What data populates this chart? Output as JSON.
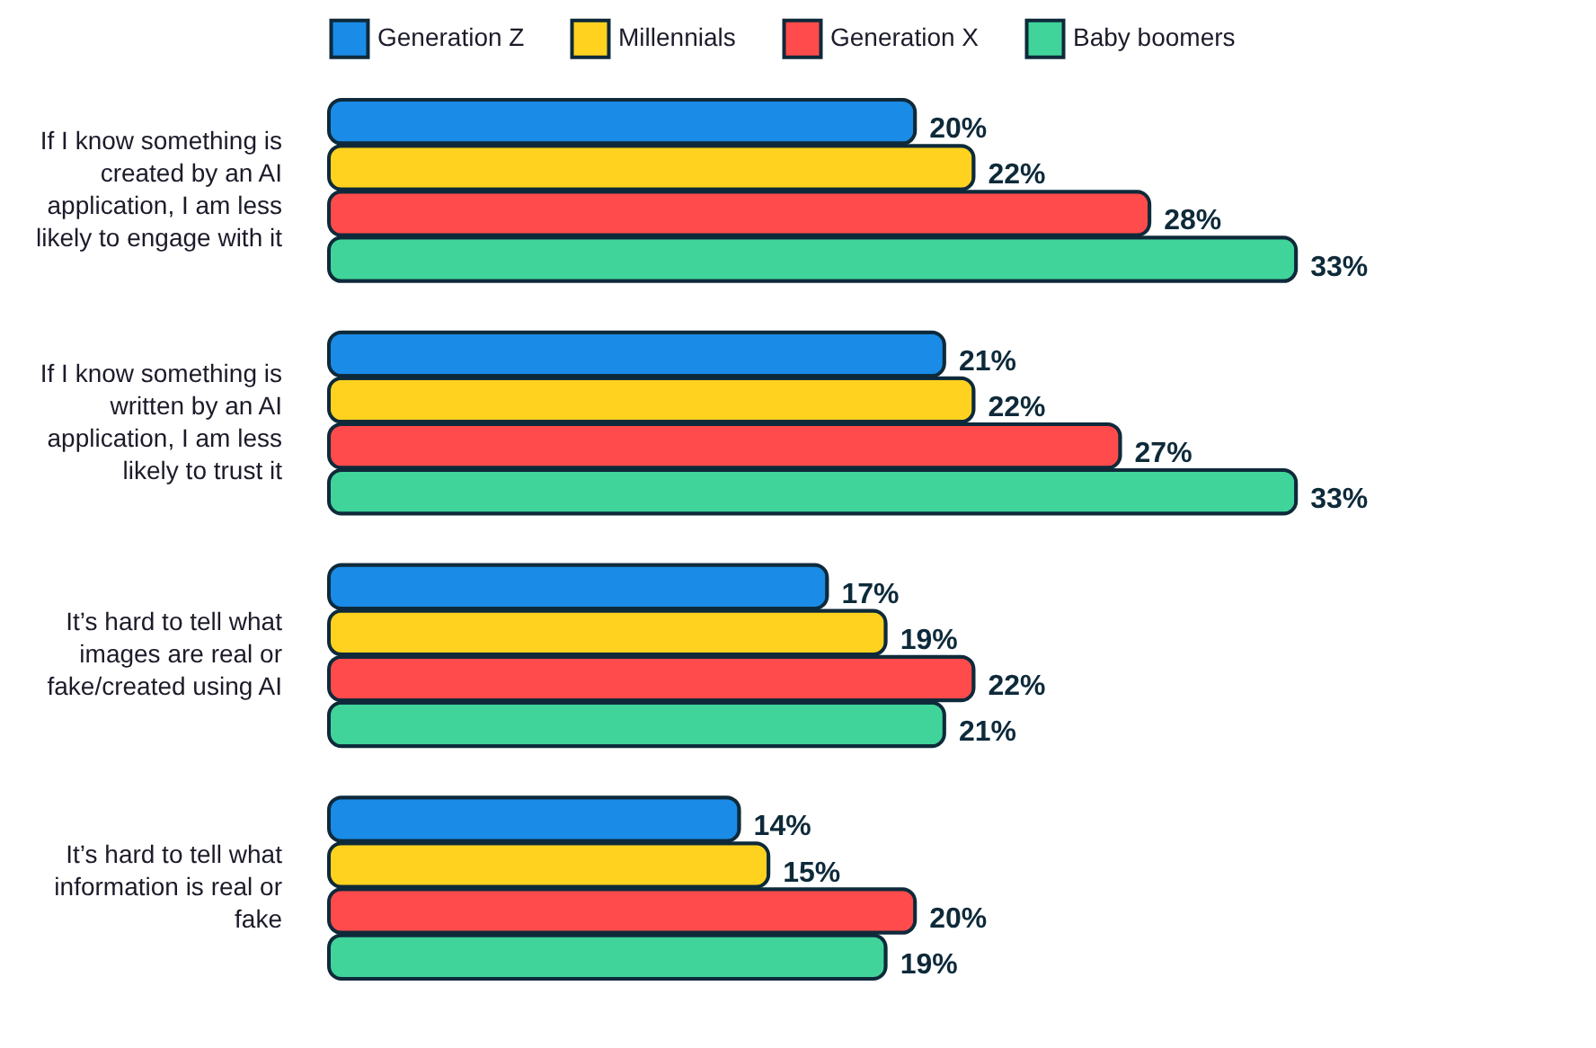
{
  "chart_data": {
    "type": "bar",
    "orientation": "horizontal",
    "legend": "top",
    "categories": [
      "If I know something is created by an AI application, I am less likely to engage with it",
      "If I know something is written by an AI application, I am less likely to trust it",
      "It’s hard to tell what images are real or fake/created using AI",
      "It’s hard to tell what information is real or fake"
    ],
    "series": [
      {
        "name": "Generation Z",
        "color": "#1a8be6",
        "values": [
          20,
          21,
          17,
          14
        ],
        "value_labels": [
          "20%",
          "21%",
          "17%",
          "14%"
        ]
      },
      {
        "name": "Millennials",
        "color": "#ffd21f",
        "values": [
          22,
          22,
          19,
          15
        ],
        "value_labels": [
          "22%",
          "22%",
          "19%",
          "15%"
        ]
      },
      {
        "name": "Generation X",
        "color": "#ff4b4b",
        "values": [
          28,
          27,
          22,
          20
        ],
        "value_labels": [
          "28%",
          "27%",
          "22%",
          "20%"
        ]
      },
      {
        "name": "Baby boomers",
        "color": "#40d49b",
        "values": [
          33,
          33,
          21,
          19
        ],
        "value_labels": [
          "33%",
          "33%",
          "21%",
          "19%"
        ]
      }
    ]
  }
}
